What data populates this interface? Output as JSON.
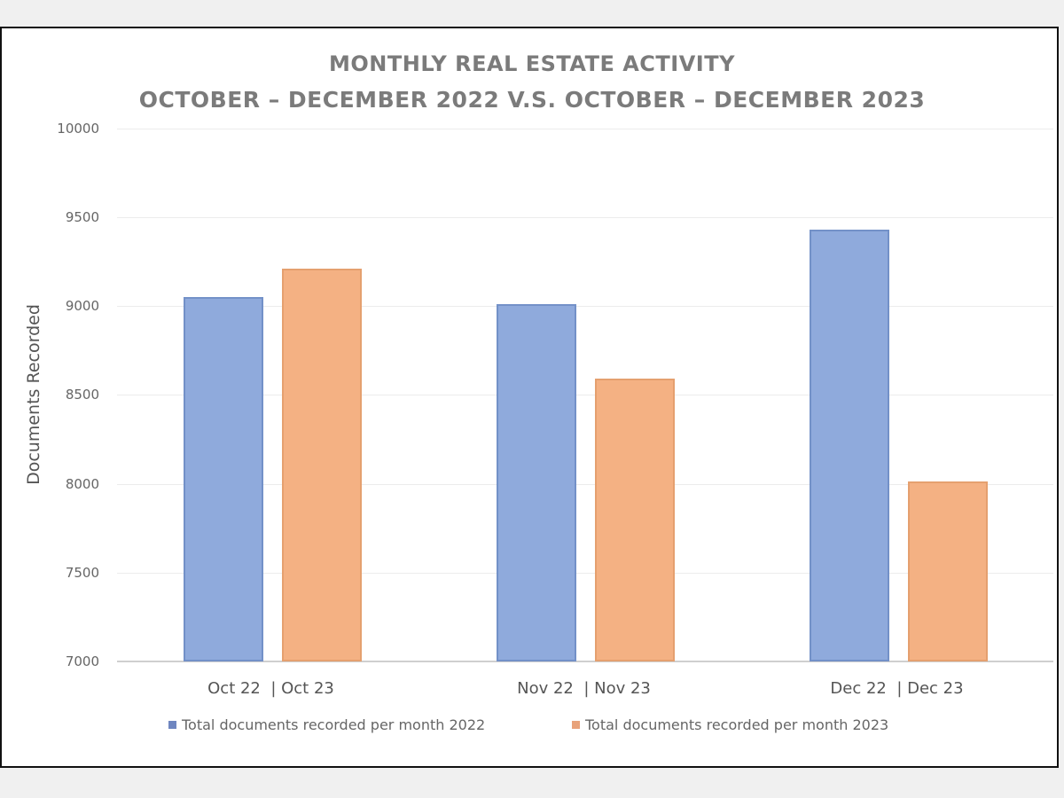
{
  "chart_data": {
    "type": "bar",
    "title": "MONTHLY REAL ESTATE ACTIVITY",
    "subtitle": "OCTOBER – DECEMBER 2022 V.S. OCTOBER – DECEMBER 2023",
    "xlabel": "",
    "ylabel": "Documents Recorded",
    "ylim": [
      7000,
      10000
    ],
    "yticks": [
      "10000",
      "9500",
      "9000",
      "8500",
      "8000",
      "7500",
      "7000"
    ],
    "grid": true,
    "legend_position": "bottom",
    "categories": [
      "Oct 22  | Oct 23",
      "Nov 22  | Nov 23",
      "Dec 22  | Dec 23"
    ],
    "series": [
      {
        "name": "Total  documents recorded per month 2022",
        "color": "#8faadc",
        "values": [
          9050,
          9010,
          9430
        ]
      },
      {
        "name": "Total documents recorded per month 2023",
        "color": "#f4b183",
        "values": [
          9210,
          8590,
          8010
        ]
      }
    ]
  }
}
